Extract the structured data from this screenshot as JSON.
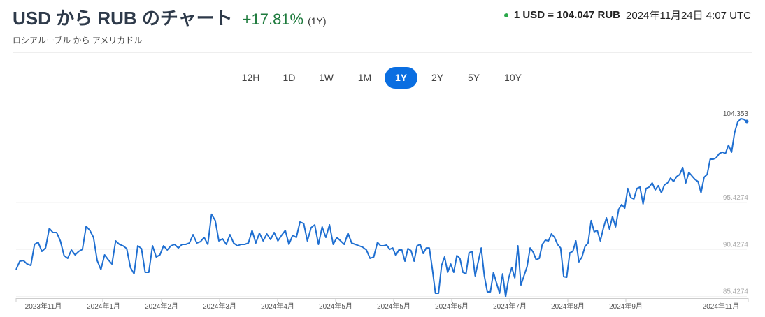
{
  "header": {
    "title": "USD から RUB のチャート",
    "change": "+17.81%",
    "period": "(1Y)",
    "subtitle": "ロシアルーブル から アメリカドル",
    "rate": "1 USD = 104.047 RUB",
    "timestamp": "2024年11月24日 4:07 UTC",
    "status_color": "#2aa84a",
    "change_color": "#1d7a3c"
  },
  "ranges": [
    {
      "label": "12H",
      "active": false
    },
    {
      "label": "1D",
      "active": false
    },
    {
      "label": "1W",
      "active": false
    },
    {
      "label": "1M",
      "active": false
    },
    {
      "label": "1Y",
      "active": true
    },
    {
      "label": "2Y",
      "active": false
    },
    {
      "label": "5Y",
      "active": false
    },
    {
      "label": "10Y",
      "active": false
    }
  ],
  "chart_data": {
    "type": "line",
    "line_color": "#1f6fd1",
    "y_ticks": [
      "104.353",
      "95.4274",
      "90.4274",
      "85.4274"
    ],
    "y_tick_values": [
      104.353,
      95.4274,
      90.4274,
      85.4274
    ],
    "x_ticks": [
      "2023年11月",
      "2024年1月",
      "2024年2月",
      "2024年3月",
      "2024年4月",
      "2024年5月",
      "2024年5月",
      "2024年6月",
      "2024年7月",
      "2024年8月",
      "2024年9月",
      "2024年11月"
    ],
    "grid": true,
    "segments": [
      {
        "from": "2023-11-24",
        "to": "2024-05-23",
        "values": [
          88.29,
          89.18,
          89.25,
          88.88,
          88.73,
          90.97,
          91.19,
          90.22,
          90.59,
          92.68,
          92.23,
          92.23,
          91.34,
          89.78,
          89.48,
          90.37,
          89.85,
          90.22,
          90.44,
          92.9,
          92.45,
          91.71,
          89.25,
          88.29,
          89.85,
          89.33,
          88.88,
          91.34,
          90.97,
          90.82,
          90.52,
          88.51,
          87.84,
          90.82,
          90.52,
          87.99,
          87.99,
          90.82,
          89.63,
          89.85,
          90.82,
          90.37,
          90.82,
          90.97,
          90.59,
          90.97,
          90.97,
          91.11,
          92.01,
          91.11,
          91.26,
          91.71,
          90.97,
          94.17,
          93.5,
          91.34,
          91.56,
          90.97,
          92.01,
          91.11,
          90.82,
          90.97,
          90.97,
          91.11,
          92.45,
          91.11,
          92.16,
          91.34,
          92.08,
          91.49,
          92.23,
          91.34,
          91.93,
          92.45,
          90.97,
          91.93,
          91.71,
          93.35,
          93.2,
          91.34,
          92.75,
          93.05,
          90.97,
          92.83,
          91.71,
          93.05,
          90.97,
          91.71,
          91.34,
          90.97,
          92.16,
          91.11,
          90.97,
          90.82,
          90.67,
          90.37,
          89.48,
          89.63,
          91.19
        ]
      },
      {
        "from": "2024-05-23",
        "to": "2024-11-24",
        "values": [
          91.19,
          90.82,
          90.82,
          90.89,
          90.44,
          90.59,
          89.78,
          90.37,
          90.37,
          89.18,
          90.52,
          90.3,
          89.18,
          90.82,
          90.97,
          90.0,
          90.59,
          90.59,
          88.29,
          85.76,
          85.76,
          88.73,
          89.63,
          87.99,
          88.88,
          87.99,
          89.78,
          89.48,
          87.99,
          87.84,
          90.07,
          90.22,
          87.62,
          89.11,
          90.59,
          87.62,
          85.91,
          85.91,
          87.99,
          86.87,
          85.76,
          87.84,
          85.39,
          87.4,
          88.51,
          87.4,
          90.82,
          86.65,
          87.62,
          88.59,
          90.59,
          90.15,
          89.33,
          89.48,
          90.97,
          91.41,
          91.34,
          92.08,
          91.71,
          90.97,
          90.59,
          87.54,
          87.47,
          90.07,
          90.22,
          91.34,
          89.11,
          89.63,
          90.74,
          91.11,
          93.5,
          92.31,
          92.45,
          91.34,
          92.68,
          93.79,
          92.6,
          93.94,
          92.83,
          94.69,
          95.21,
          94.83,
          96.92,
          95.95,
          95.8,
          96.92,
          97.07,
          95.28,
          96.92,
          97.07,
          97.51,
          96.77,
          97.22,
          96.47,
          97.29,
          97.51,
          98.03,
          97.66,
          98.18,
          98.41,
          99.15,
          97.51,
          98.63,
          98.26,
          97.89,
          97.66,
          96.47,
          98.11,
          98.41,
          100.04,
          100.04,
          100.19,
          100.64,
          100.79,
          100.64,
          101.53,
          100.79,
          102.87,
          103.99,
          104.35,
          104.28,
          104.05
        ]
      }
    ]
  }
}
